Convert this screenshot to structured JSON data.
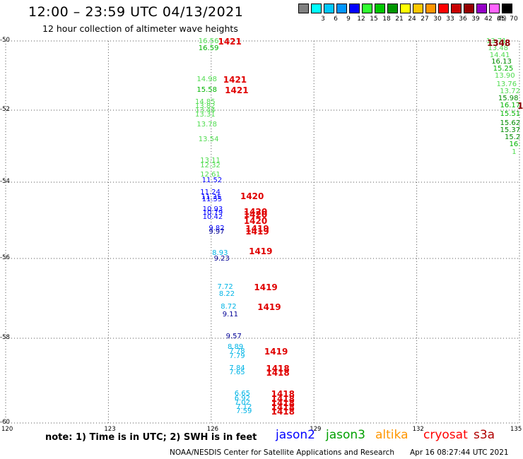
{
  "header": {
    "title": "12:00 – 23:59 UTC 04/13/2021",
    "subtitle": "12 hour collection of altimeter wave heights"
  },
  "scale": {
    "unit_label": "(ft)",
    "bins": [
      {
        "label": "",
        "color": "#808080"
      },
      {
        "label": "3",
        "color": "#00ffff"
      },
      {
        "label": "6",
        "color": "#00c8ff"
      },
      {
        "label": "9",
        "color": "#0096ff"
      },
      {
        "label": "12",
        "color": "#0000ff"
      },
      {
        "label": "15",
        "color": "#32ff32"
      },
      {
        "label": "18",
        "color": "#00c800"
      },
      {
        "label": "21",
        "color": "#009600"
      },
      {
        "label": "24",
        "color": "#ffff00"
      },
      {
        "label": "27",
        "color": "#ffc800"
      },
      {
        "label": "30",
        "color": "#ff9600"
      },
      {
        "label": "33",
        "color": "#ff0000"
      },
      {
        "label": "36",
        "color": "#c80000"
      },
      {
        "label": "39",
        "color": "#960000"
      },
      {
        "label": "42",
        "color": "#9600c8"
      },
      {
        "label": "45",
        "color": "#ff64ff"
      },
      {
        "label": "70",
        "color": "#000000"
      }
    ]
  },
  "map": {
    "lon_range": [
      120,
      135
    ],
    "lat_range": [
      -60,
      -50
    ],
    "lon_ticks": [
      "120",
      "123",
      "126",
      "129",
      "132",
      "135"
    ],
    "lat_ticks": [
      "-50",
      "-52",
      "-54",
      "-56",
      "-58",
      "-60"
    ],
    "grid": "dotted"
  },
  "colors": {
    "jason2": "#0000ff",
    "jason3": "#00a000",
    "altika": "#ff9600",
    "cryosat": "#ff0000",
    "s3a": "#b00000",
    "pass_red": "#e00000",
    "pass_darkred": "#8b0000",
    "swh_light_green": "#50dc50",
    "swh_green": "#00b400",
    "swh_dark_green": "#008c00",
    "swh_cyan": "#00b4e6",
    "swh_blue": "#0000ff",
    "swh_navy": "#000096"
  },
  "observations": [
    {
      "v": "16.56",
      "c": "#50dc50",
      "lon": 126.0,
      "lat": -50.0
    },
    {
      "v": "16.59",
      "c": "#00b400",
      "lon": 126.0,
      "lat": -50.2
    },
    {
      "v": "14.98",
      "c": "#50dc50",
      "lon": 125.95,
      "lat": -51.1
    },
    {
      "v": "15.58",
      "c": "#00b400",
      "lon": 125.95,
      "lat": -51.4
    },
    {
      "v": "14.85",
      "c": "#50dc50",
      "lon": 125.9,
      "lat": -51.75
    },
    {
      "v": "13.82",
      "c": "#50dc50",
      "lon": 125.9,
      "lat": -51.88
    },
    {
      "v": "13.44",
      "c": "#50dc50",
      "lon": 125.9,
      "lat": -52.0
    },
    {
      "v": "13.31",
      "c": "#50dc50",
      "lon": 125.9,
      "lat": -52.12
    },
    {
      "v": "13.78",
      "c": "#50dc50",
      "lon": 125.95,
      "lat": -52.4
    },
    {
      "v": "13.54",
      "c": "#50dc50",
      "lon": 126.0,
      "lat": -52.8
    },
    {
      "v": "13.11",
      "c": "#50dc50",
      "lon": 126.05,
      "lat": -53.4
    },
    {
      "v": "12.32",
      "c": "#50dc50",
      "lon": 126.05,
      "lat": -53.53
    },
    {
      "v": "12.61",
      "c": "#50dc50",
      "lon": 126.05,
      "lat": -53.78
    },
    {
      "v": "11.52",
      "c": "#0000ff",
      "lon": 126.1,
      "lat": -53.95
    },
    {
      "v": "11.24",
      "c": "#0000ff",
      "lon": 126.05,
      "lat": -54.25
    },
    {
      "v": "11.35",
      "c": "#0000ff",
      "lon": 126.08,
      "lat": -54.38
    },
    {
      "v": "11.55",
      "c": "#0000ff",
      "lon": 126.1,
      "lat": -54.45
    },
    {
      "v": "10.93",
      "c": "#0000ff",
      "lon": 126.12,
      "lat": -54.7
    },
    {
      "v": "10.79",
      "c": "#0000ff",
      "lon": 126.12,
      "lat": -54.8
    },
    {
      "v": "10.42",
      "c": "#0000ff",
      "lon": 126.12,
      "lat": -54.9
    },
    {
      "v": "9.82",
      "c": "#0000ff",
      "lon": 126.3,
      "lat": -55.2
    },
    {
      "v": "9.97",
      "c": "#000096",
      "lon": 126.3,
      "lat": -55.3
    },
    {
      "v": "8.93",
      "c": "#00b4e6",
      "lon": 126.4,
      "lat": -55.85
    },
    {
      "v": "9.23",
      "c": "#000096",
      "lon": 126.45,
      "lat": -56.0
    },
    {
      "v": "7.72",
      "c": "#00b4e6",
      "lon": 126.55,
      "lat": -56.7
    },
    {
      "v": "8.22",
      "c": "#00b4e6",
      "lon": 126.6,
      "lat": -56.88
    },
    {
      "v": "8.72",
      "c": "#00b4e6",
      "lon": 126.65,
      "lat": -57.2
    },
    {
      "v": "9.11",
      "c": "#000096",
      "lon": 126.7,
      "lat": -57.4
    },
    {
      "v": "9.57",
      "c": "#000096",
      "lon": 126.8,
      "lat": -57.95
    },
    {
      "v": "8.89",
      "c": "#00b4e6",
      "lon": 126.85,
      "lat": -58.2
    },
    {
      "v": "7.78",
      "c": "#00b4e6",
      "lon": 126.9,
      "lat": -58.3
    },
    {
      "v": "7.79",
      "c": "#00b4e6",
      "lon": 126.9,
      "lat": -58.42
    },
    {
      "v": "7.84",
      "c": "#00b4e6",
      "lon": 126.9,
      "lat": -58.7
    },
    {
      "v": "7.65",
      "c": "#00b4e6",
      "lon": 126.9,
      "lat": -58.8
    },
    {
      "v": "6.65",
      "c": "#00b4e6",
      "lon": 127.05,
      "lat": -59.3
    },
    {
      "v": "6.92",
      "c": "#00b4e6",
      "lon": 127.05,
      "lat": -59.42
    },
    {
      "v": "7.02",
      "c": "#00b4e6",
      "lon": 127.05,
      "lat": -59.52
    },
    {
      "v": "7.12",
      "c": "#00b4e6",
      "lon": 127.1,
      "lat": -59.62
    },
    {
      "v": "7.59",
      "c": "#00b4e6",
      "lon": 127.1,
      "lat": -59.72
    },
    {
      "v": "13.71",
      "c": "#50dc50",
      "lon": 134.4,
      "lat": -50.0
    },
    {
      "v": "13.48",
      "c": "#50dc50",
      "lon": 134.45,
      "lat": -50.2
    },
    {
      "v": "14.41",
      "c": "#50dc50",
      "lon": 134.5,
      "lat": -50.4
    },
    {
      "v": "16.13",
      "c": "#008c00",
      "lon": 134.55,
      "lat": -50.6
    },
    {
      "v": "15.25",
      "c": "#00b400",
      "lon": 134.6,
      "lat": -50.8
    },
    {
      "v": "13.90",
      "c": "#50dc50",
      "lon": 134.65,
      "lat": -51.0
    },
    {
      "v": "13.76",
      "c": "#50dc50",
      "lon": 134.7,
      "lat": -51.25
    },
    {
      "v": "13.72",
      "c": "#50dc50",
      "lon": 134.8,
      "lat": -51.45
    },
    {
      "v": "15.98",
      "c": "#008c00",
      "lon": 134.75,
      "lat": -51.65
    },
    {
      "v": "16.17",
      "c": "#00b400",
      "lon": 134.85,
      "lat": -51.85
    },
    {
      "v": "15.51",
      "c": "#00b400",
      "lon": 134.9,
      "lat": -52.1
    },
    {
      "v": "15.62",
      "c": "#008c00",
      "lon": 134.95,
      "lat": -52.35
    },
    {
      "v": "15.37",
      "c": "#008c00",
      "lon": 135.0,
      "lat": -52.55
    },
    {
      "v": "15.2",
      "c": "#008c00",
      "lon": 135.05,
      "lat": -52.75
    },
    {
      "v": "16.",
      "c": "#00b400",
      "lon": 135.1,
      "lat": -52.95
    },
    {
      "v": "1",
      "c": "#50dc50",
      "lon": 135.15,
      "lat": -53.15
    }
  ],
  "pass_labels": [
    {
      "v": "1421",
      "c": "#e00000",
      "lon": 126.2,
      "lat": -50.0
    },
    {
      "v": "1421",
      "c": "#e00000",
      "lon": 126.35,
      "lat": -51.1
    },
    {
      "v": "1421",
      "c": "#e00000",
      "lon": 126.4,
      "lat": -51.4
    },
    {
      "v": "1420",
      "c": "#e00000",
      "lon": 126.85,
      "lat": -54.35
    },
    {
      "v": "1420",
      "c": "#e00000",
      "lon": 126.95,
      "lat": -54.75
    },
    {
      "v": "1420",
      "c": "#e00000",
      "lon": 126.95,
      "lat": -54.83
    },
    {
      "v": "1420",
      "c": "#e00000",
      "lon": 126.95,
      "lat": -55.0
    },
    {
      "v": "1419",
      "c": "#e00000",
      "lon": 127.0,
      "lat": -55.2
    },
    {
      "v": "1419",
      "c": "#e00000",
      "lon": 127.0,
      "lat": -55.28
    },
    {
      "v": "1419",
      "c": "#e00000",
      "lon": 127.1,
      "lat": -55.8
    },
    {
      "v": "1419",
      "c": "#e00000",
      "lon": 127.25,
      "lat": -56.7
    },
    {
      "v": "1419",
      "c": "#e00000",
      "lon": 127.35,
      "lat": -57.2
    },
    {
      "v": "1419",
      "c": "#e00000",
      "lon": 127.55,
      "lat": -58.3
    },
    {
      "v": "1418",
      "c": "#e00000",
      "lon": 127.6,
      "lat": -58.7
    },
    {
      "v": "1418",
      "c": "#e00000",
      "lon": 127.6,
      "lat": -58.8
    },
    {
      "v": "1418",
      "c": "#e00000",
      "lon": 127.75,
      "lat": -59.3
    },
    {
      "v": "1418",
      "c": "#e00000",
      "lon": 127.75,
      "lat": -59.42
    },
    {
      "v": "1418",
      "c": "#e00000",
      "lon": 127.75,
      "lat": -59.52
    },
    {
      "v": "1418",
      "c": "#e00000",
      "lon": 127.75,
      "lat": -59.62
    },
    {
      "v": "1418",
      "c": "#e00000",
      "lon": 127.75,
      "lat": -59.72
    },
    {
      "v": "1348",
      "c": "#8b0000",
      "lon": 134.05,
      "lat": -50.05
    },
    {
      "v": "1",
      "c": "#8b0000",
      "lon": 135.3,
      "lat": -51.85
    }
  ],
  "footer": {
    "note": "note:  1) Time is in UTC;  2) SWH is in feet",
    "satellites": [
      {
        "name": "jason2",
        "color": "#0000ff"
      },
      {
        "name": "jason3",
        "color": "#00a000"
      },
      {
        "name": "altika",
        "color": "#ff9600"
      },
      {
        "name": "cryosat",
        "color": "#ff0000"
      },
      {
        "name": "s3a",
        "color": "#b00000"
      }
    ],
    "credit": "NOAA/NESDIS Center for Satellite Applications and Research",
    "timestamp": "Apr 16 08:27:44 UTC 2021"
  }
}
